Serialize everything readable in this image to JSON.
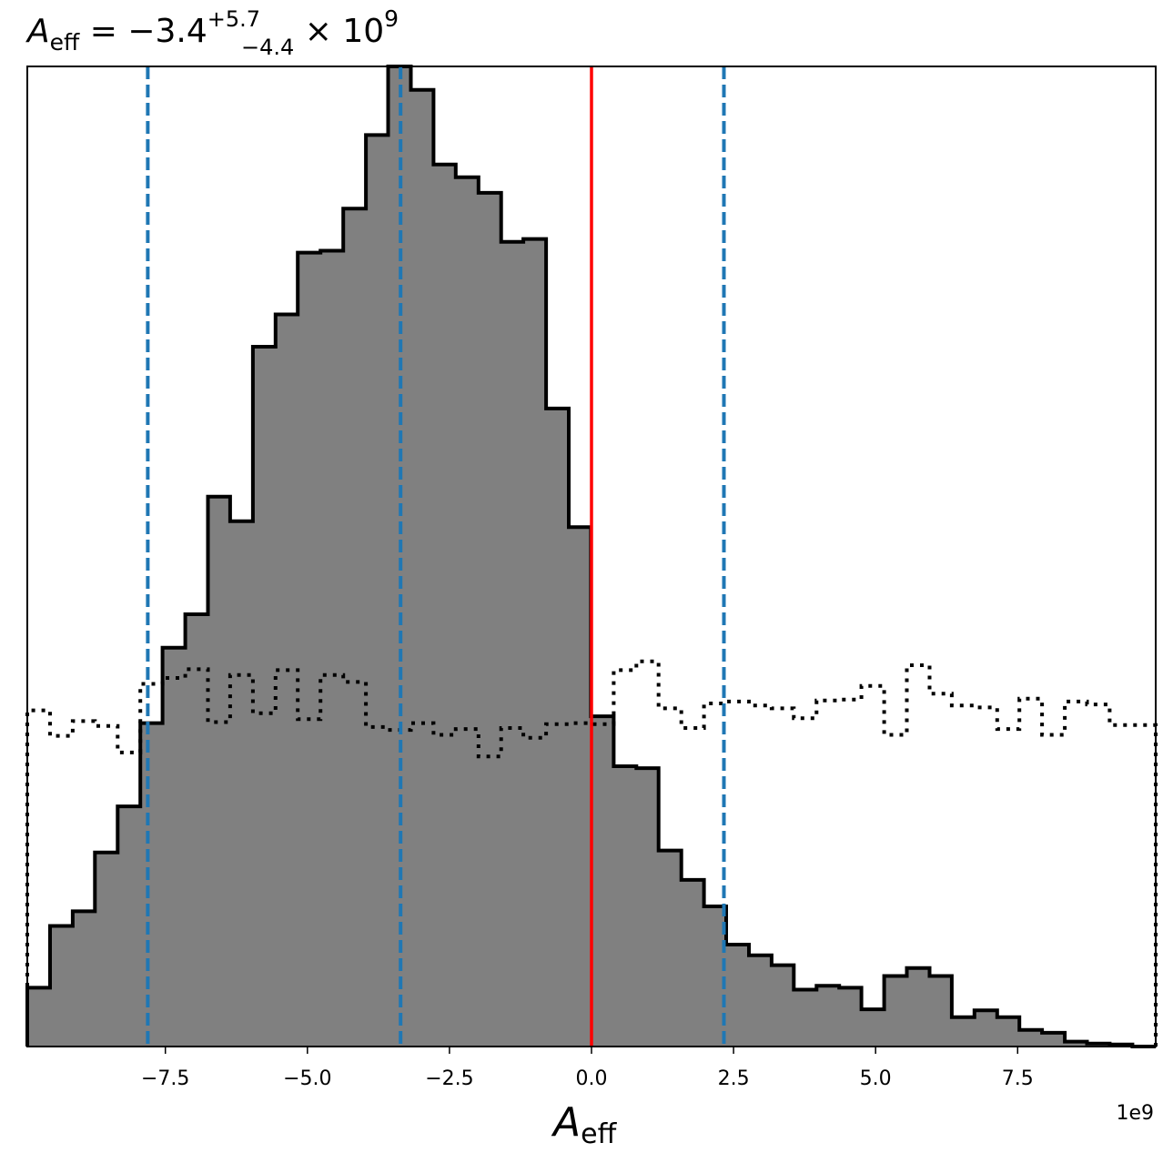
{
  "chart_data": {
    "type": "histogram",
    "title": {
      "main": "A",
      "main_sub": "eff",
      "equals": " = −3.4",
      "sup": "+5.7",
      "sub": "−4.4",
      "times": " × 10",
      "exp": "9"
    },
    "xlabel": {
      "main": "A",
      "sub": "eff"
    },
    "x_offset_label": "1e9",
    "xlim": [
      -9.93,
      9.93
    ],
    "ylim": [
      0,
      1.0
    ],
    "grid": false,
    "x_ticks": [
      {
        "value": -7.5,
        "label": "−7.5"
      },
      {
        "value": -5.0,
        "label": "−5.0"
      },
      {
        "value": -2.5,
        "label": "−2.5"
      },
      {
        "value": 0.0,
        "label": "0.0"
      },
      {
        "value": 2.5,
        "label": "2.5"
      },
      {
        "value": 5.0,
        "label": "5.0"
      },
      {
        "value": 7.5,
        "label": "7.5"
      }
    ],
    "bin_edges": [
      -9.93,
      -9.53,
      -9.13,
      -8.74,
      -8.34,
      -7.94,
      -7.55,
      -7.15,
      -6.75,
      -6.36,
      -5.96,
      -5.56,
      -5.17,
      -4.77,
      -4.37,
      -3.97,
      -3.58,
      -3.18,
      -2.78,
      -2.39,
      -1.99,
      -1.59,
      -1.2,
      -0.8,
      -0.4,
      -0.01,
      0.39,
      0.79,
      1.18,
      1.58,
      1.98,
      2.37,
      2.77,
      3.17,
      3.56,
      3.96,
      4.36,
      4.75,
      5.15,
      5.55,
      5.95,
      6.34,
      6.74,
      7.14,
      7.53,
      7.93,
      8.33,
      8.72,
      9.12,
      9.52,
      9.93
    ],
    "series": [
      {
        "style": "filled-step",
        "fill_color": "#808080",
        "edge_color": "#000000",
        "values": [
          0.06,
          0.123,
          0.138,
          0.198,
          0.245,
          0.33,
          0.407,
          0.441,
          0.561,
          0.536,
          0.714,
          0.747,
          0.81,
          0.812,
          0.855,
          0.93,
          1.0,
          0.976,
          0.9,
          0.887,
          0.871,
          0.821,
          0.824,
          0.651,
          0.53,
          0.337,
          0.286,
          0.284,
          0.2,
          0.17,
          0.143,
          0.104,
          0.093,
          0.083,
          0.058,
          0.062,
          0.06,
          0.038,
          0.072,
          0.08,
          0.072,
          0.03,
          0.037,
          0.03,
          0.017,
          0.014,
          0.005,
          0.003,
          0.002,
          0.0
        ]
      },
      {
        "style": "dotted-step",
        "edge_color": "#000000",
        "values": [
          0.343,
          0.317,
          0.332,
          0.327,
          0.3,
          0.37,
          0.376,
          0.385,
          0.331,
          0.379,
          0.34,
          0.384,
          0.334,
          0.379,
          0.372,
          0.326,
          0.323,
          0.33,
          0.318,
          0.324,
          0.296,
          0.325,
          0.315,
          0.329,
          0.33,
          0.329,
          0.384,
          0.393,
          0.345,
          0.325,
          0.35,
          0.352,
          0.348,
          0.345,
          0.335,
          0.353,
          0.354,
          0.368,
          0.318,
          0.389,
          0.36,
          0.348,
          0.346,
          0.324,
          0.355,
          0.318,
          0.352,
          0.349,
          0.328,
          0.328
        ]
      }
    ],
    "vlines": [
      {
        "x": 0.0,
        "color": "#ff0000",
        "style": "solid"
      },
      {
        "x": -7.81,
        "color": "#1f77b4",
        "style": "dashed"
      },
      {
        "x": -3.36,
        "color": "#1f77b4",
        "style": "dashed"
      },
      {
        "x": 2.33,
        "color": "#1f77b4",
        "style": "dashed"
      }
    ]
  }
}
